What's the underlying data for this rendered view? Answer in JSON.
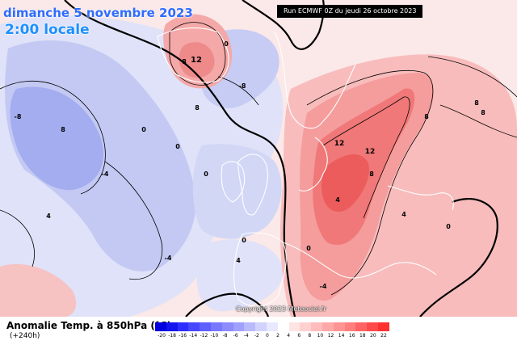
{
  "header": {
    "date_label": "dimanche 5 novembre 2023",
    "time_label": "2:00 locale",
    "run_label": "Run ECMWF 0Z du jeudi 26 octobre 2023"
  },
  "footer": {
    "field_title": "Anomalie Temp. à 850hPa (°C)",
    "lead_time": "(+240h)"
  },
  "copyright": "Copyright 2023 Meteociel.fr",
  "legend": {
    "tick_labels": [
      "-20",
      "-18",
      "-16",
      "-14",
      "-12",
      "-10",
      "-8",
      "-6",
      "-4",
      "-2",
      "0",
      "2",
      "4",
      "6",
      "8",
      "10",
      "12",
      "14",
      "16",
      "18",
      "20",
      "22"
    ],
    "colors": [
      "#0000e0",
      "#1414ef",
      "#2d2dff",
      "#4646ff",
      "#5f5fff",
      "#7878ff",
      "#8c8cff",
      "#a0a0ff",
      "#b9b9ff",
      "#d2d2ff",
      "#e8e8ff",
      "#ffffff",
      "#ffe4e4",
      "#ffd0d0",
      "#ffbcbc",
      "#ffa8a8",
      "#ff9494",
      "#ff7e7e",
      "#ff6464",
      "#ff4a4a",
      "#ff3030"
    ]
  },
  "contour_labels": [
    "12",
    "8",
    "0",
    "-8",
    "-8",
    "8",
    "0",
    "0",
    "8",
    "0",
    "-4",
    "12",
    "12",
    "8",
    "4",
    "-4",
    "4",
    "8",
    "0",
    "-4",
    "4",
    "0",
    "0",
    "4",
    "8",
    "8"
  ],
  "map_colors": {
    "cold_light": "#dce0fa",
    "cold_mid": "#b7c0f3",
    "cold_deep": "#98a4ee",
    "warm_light": "#fce0e0",
    "warm_mid": "#f8b4b4",
    "warm_deep": "#f27a7a",
    "warm_core": "#ee5656"
  }
}
